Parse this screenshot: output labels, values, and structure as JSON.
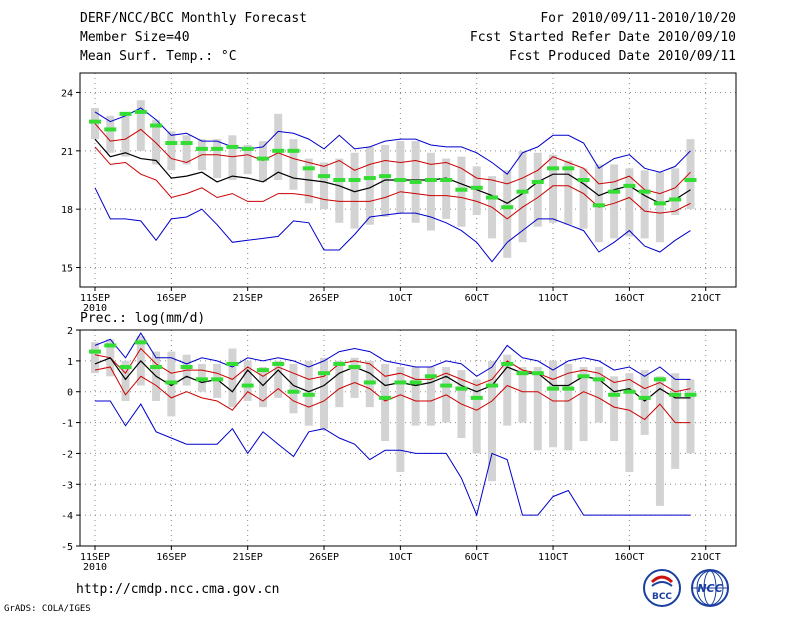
{
  "header": {
    "title": "DERF/NCC/BCC Monthly Forecast",
    "member_size": "Member Size=40",
    "variable": "Mean Surf. Temp.: °C",
    "period": "For 2010/09/11-2010/10/20",
    "started": "Fcst Started Refer Date 2010/09/10",
    "produced": "Fcst Produced Date 2010/09/11"
  },
  "footer": {
    "url": "http://cmdp.ncc.cma.gov.cn",
    "grads": "GrADS: COLA/IGES",
    "logo_bcc": "BCC",
    "logo_ncc": "NCC"
  },
  "colors": {
    "ensmax": "#0000cc",
    "ensmin": "#0000cc",
    "spread": "#cc0000",
    "mean": "#000000",
    "box": "#d3d3d3",
    "clim": "#33dd33"
  },
  "chart_data": [
    {
      "type": "line",
      "title": "Mean Surf. Temp.: °C",
      "xlabel": "",
      "ylabel": "",
      "xlim": [
        1,
        40
      ],
      "ylim": [
        14,
        25
      ],
      "yticks": [
        15,
        18,
        21,
        24
      ],
      "xticks": [
        {
          "day": 1,
          "label": "11SEP"
        },
        {
          "day": 6,
          "label": "16SEP"
        },
        {
          "day": 11,
          "label": "21SEP"
        },
        {
          "day": 16,
          "label": "26SEP"
        },
        {
          "day": 21,
          "label": "1OCT"
        },
        {
          "day": 26,
          "label": "6OCT"
        },
        {
          "day": 31,
          "label": "11OCT"
        },
        {
          "day": 36,
          "label": "16OCT"
        },
        {
          "day": 41,
          "label": "21OCT"
        }
      ],
      "year_label": "2010",
      "grid": true,
      "x": [
        1,
        2,
        3,
        4,
        5,
        6,
        7,
        8,
        9,
        10,
        11,
        12,
        13,
        14,
        15,
        16,
        17,
        18,
        19,
        20,
        21,
        22,
        23,
        24,
        25,
        26,
        27,
        28,
        29,
        30,
        31,
        32,
        33,
        34,
        35,
        36,
        37,
        38,
        39,
        40
      ],
      "series": [
        {
          "name": "max",
          "values": [
            23.0,
            22.5,
            22.8,
            23.2,
            22.6,
            21.8,
            21.9,
            21.5,
            21.5,
            21.2,
            21.1,
            21.2,
            22.0,
            21.9,
            21.6,
            21.1,
            21.8,
            21.1,
            21.2,
            21.5,
            21.6,
            21.6,
            21.3,
            21.2,
            21.2,
            20.9,
            20.4,
            19.8,
            20.9,
            21.2,
            21.8,
            21.8,
            21.4,
            20.1,
            20.6,
            20.8,
            20.1,
            19.9,
            20.2,
            21.0
          ]
        },
        {
          "name": "upper",
          "values": [
            22.4,
            21.5,
            21.6,
            22.1,
            21.4,
            20.6,
            20.4,
            20.8,
            20.8,
            20.7,
            20.8,
            20.5,
            20.9,
            20.6,
            20.4,
            20.2,
            20.5,
            20.0,
            20.3,
            20.5,
            20.4,
            20.5,
            20.3,
            20.4,
            20.1,
            19.6,
            19.5,
            19.3,
            19.6,
            20.0,
            20.7,
            20.4,
            20.1,
            19.3,
            19.4,
            19.7,
            19.0,
            18.8,
            19.1,
            19.9
          ]
        },
        {
          "name": "mean",
          "values": [
            21.6,
            20.7,
            20.9,
            20.6,
            20.5,
            19.6,
            19.7,
            19.9,
            19.4,
            19.7,
            19.6,
            19.4,
            19.9,
            19.6,
            19.5,
            19.4,
            19.2,
            18.9,
            19.1,
            19.5,
            19.5,
            19.5,
            19.5,
            19.6,
            19.3,
            19.0,
            18.7,
            18.3,
            18.8,
            19.4,
            19.8,
            19.8,
            19.3,
            18.7,
            19.0,
            19.2,
            18.7,
            18.3,
            18.5,
            19.0
          ]
        },
        {
          "name": "lower",
          "values": [
            21.2,
            20.3,
            20.4,
            19.8,
            19.5,
            18.6,
            18.8,
            19.1,
            18.6,
            18.8,
            18.4,
            18.4,
            18.8,
            18.8,
            18.7,
            18.5,
            18.4,
            18.4,
            18.4,
            18.6,
            18.9,
            18.8,
            18.7,
            18.7,
            18.6,
            18.4,
            18.1,
            17.5,
            18.1,
            18.6,
            19.2,
            19.2,
            18.8,
            18.1,
            18.3,
            18.6,
            17.9,
            17.8,
            17.9,
            18.3
          ]
        },
        {
          "name": "min",
          "values": [
            19.1,
            17.5,
            17.5,
            17.4,
            16.4,
            17.5,
            17.6,
            18.0,
            17.2,
            16.3,
            16.4,
            16.5,
            16.6,
            17.4,
            17.3,
            15.9,
            15.9,
            16.7,
            17.6,
            17.7,
            17.8,
            17.8,
            17.6,
            17.3,
            16.9,
            16.3,
            15.3,
            16.3,
            16.9,
            17.5,
            17.5,
            17.2,
            16.9,
            15.8,
            16.3,
            16.9,
            16.1,
            15.8,
            16.4,
            16.9
          ]
        },
        {
          "name": "box_top",
          "values": [
            23.2,
            22.8,
            22.8,
            23.6,
            22.6,
            22.0,
            21.8,
            21.6,
            21.6,
            21.8,
            21.3,
            21.5,
            22.9,
            21.6,
            20.6,
            20.4,
            20.6,
            20.9,
            21.2,
            21.3,
            21.5,
            21.5,
            20.9,
            20.6,
            20.7,
            20.2,
            19.7,
            20.0,
            21.0,
            20.9,
            20.8,
            20.5,
            20.1,
            20.3,
            20.3,
            20.1,
            20.0,
            19.9,
            20.1,
            21.6
          ]
        },
        {
          "name": "box_bottom",
          "values": [
            21.6,
            20.9,
            20.7,
            21.0,
            20.3,
            20.0,
            20.3,
            20.0,
            19.6,
            19.5,
            19.8,
            19.4,
            19.5,
            19.0,
            18.3,
            18.0,
            17.3,
            17.0,
            17.2,
            17.6,
            17.8,
            17.3,
            16.9,
            17.5,
            17.1,
            17.7,
            16.5,
            15.5,
            16.3,
            17.1,
            17.3,
            17.2,
            17.0,
            16.3,
            16.5,
            16.6,
            16.5,
            16.3,
            17.7,
            18.0
          ]
        },
        {
          "name": "clim",
          "values": [
            22.5,
            22.1,
            22.9,
            23.0,
            22.3,
            21.4,
            21.4,
            21.1,
            21.1,
            21.2,
            21.1,
            20.6,
            21.0,
            21.0,
            20.1,
            19.7,
            19.5,
            19.5,
            19.6,
            19.7,
            19.5,
            19.4,
            19.5,
            19.5,
            19.0,
            19.1,
            18.6,
            18.1,
            18.9,
            19.4,
            20.1,
            20.1,
            19.5,
            18.2,
            18.9,
            19.2,
            18.9,
            18.3,
            18.5,
            19.5
          ]
        }
      ]
    },
    {
      "type": "line",
      "title": "Prec.: log(mm/d)",
      "xlabel": "",
      "ylabel": "",
      "xlim": [
        1,
        40
      ],
      "ylim": [
        -5,
        2
      ],
      "yticks": [
        -5,
        -4,
        -3,
        -2,
        -1,
        0,
        1,
        2
      ],
      "xticks": [
        {
          "day": 1,
          "label": "11SEP"
        },
        {
          "day": 6,
          "label": "16SEP"
        },
        {
          "day": 11,
          "label": "21SEP"
        },
        {
          "day": 16,
          "label": "26SEP"
        },
        {
          "day": 21,
          "label": "1OCT"
        },
        {
          "day": 26,
          "label": "6OCT"
        },
        {
          "day": 31,
          "label": "11OCT"
        },
        {
          "day": 36,
          "label": "16OCT"
        },
        {
          "day": 41,
          "label": "21OCT"
        }
      ],
      "year_label": "2010",
      "grid": true,
      "x": [
        1,
        2,
        3,
        4,
        5,
        6,
        7,
        8,
        9,
        10,
        11,
        12,
        13,
        14,
        15,
        16,
        17,
        18,
        19,
        20,
        21,
        22,
        23,
        24,
        25,
        26,
        27,
        28,
        29,
        30,
        31,
        32,
        33,
        34,
        35,
        36,
        37,
        38,
        39,
        40
      ],
      "series": [
        {
          "name": "max",
          "values": [
            1.5,
            1.7,
            1.1,
            1.9,
            1.1,
            1.1,
            0.9,
            1.1,
            1.0,
            0.8,
            1.1,
            1.0,
            1.1,
            1.0,
            0.8,
            1.0,
            1.3,
            1.4,
            1.3,
            1.0,
            0.9,
            0.8,
            0.8,
            1.0,
            0.9,
            0.5,
            0.8,
            1.5,
            1.1,
            1.0,
            0.7,
            1.0,
            1.1,
            1.0,
            0.7,
            0.8,
            0.5,
            0.8,
            0.4,
            0.4
          ]
        },
        {
          "name": "upper",
          "values": [
            1.2,
            1.1,
            0.6,
            1.4,
            0.9,
            0.6,
            0.7,
            0.7,
            0.6,
            0.4,
            0.8,
            0.5,
            0.8,
            0.6,
            0.4,
            0.5,
            0.9,
            1.0,
            0.9,
            0.5,
            0.6,
            0.4,
            0.4,
            0.6,
            0.4,
            0.2,
            0.4,
            1.0,
            0.7,
            0.6,
            0.4,
            0.6,
            0.7,
            0.6,
            0.3,
            0.4,
            0.1,
            0.3,
            0.0,
            0.1
          ]
        },
        {
          "name": "mean",
          "values": [
            0.9,
            1.1,
            0.4,
            1.0,
            0.5,
            0.2,
            0.5,
            0.3,
            0.4,
            0.0,
            0.7,
            0.2,
            0.7,
            0.2,
            0.0,
            0.2,
            0.6,
            0.8,
            0.6,
            0.2,
            0.3,
            0.2,
            0.3,
            0.5,
            0.2,
            0.0,
            0.2,
            0.8,
            0.6,
            0.6,
            0.2,
            0.2,
            0.5,
            0.4,
            0.0,
            0.1,
            -0.3,
            0.1,
            -0.2,
            -0.2
          ]
        },
        {
          "name": "lower",
          "values": [
            0.7,
            0.8,
            -0.1,
            0.5,
            0.2,
            -0.2,
            0.0,
            -0.2,
            -0.3,
            -0.6,
            0.0,
            -0.3,
            0.1,
            -0.3,
            -0.5,
            -0.3,
            0.1,
            0.3,
            0.1,
            -0.3,
            -0.1,
            -0.3,
            -0.3,
            -0.1,
            -0.4,
            -0.6,
            -0.3,
            0.2,
            0.0,
            0.0,
            -0.3,
            -0.3,
            0.0,
            -0.2,
            -0.5,
            -0.6,
            -0.9,
            -0.4,
            -1.0,
            -1.0
          ]
        },
        {
          "name": "min",
          "values": [
            -0.3,
            -0.3,
            -1.1,
            -0.4,
            -1.3,
            -1.5,
            -1.7,
            -1.7,
            -1.7,
            -1.2,
            -2.0,
            -1.3,
            -1.7,
            -2.1,
            -1.3,
            -1.2,
            -1.5,
            -1.7,
            -2.2,
            -1.9,
            -1.9,
            -2.0,
            -2.0,
            -2.0,
            -2.8,
            -4.0,
            -2.0,
            -2.2,
            -4.0,
            -4.0,
            -3.4,
            -3.2,
            -4.0,
            -4.0,
            -4.0,
            -4.0,
            -4.0,
            -4.0,
            -4.0,
            -4.0
          ]
        },
        {
          "name": "box_top",
          "values": [
            1.6,
            1.7,
            1.0,
            1.8,
            1.3,
            1.3,
            1.2,
            0.9,
            0.9,
            1.4,
            1.0,
            0.8,
            1.0,
            0.9,
            1.0,
            1.1,
            1.0,
            1.1,
            1.0,
            0.9,
            0.8,
            0.8,
            0.8,
            0.8,
            0.7,
            0.4,
            1.0,
            1.2,
            0.8,
            0.8,
            1.0,
            0.9,
            0.8,
            0.8,
            0.5,
            0.6,
            0.7,
            0.5,
            0.6,
            0.4
          ]
        },
        {
          "name": "box_bottom",
          "values": [
            0.6,
            0.5,
            -0.3,
            0.2,
            -0.3,
            -0.8,
            0.2,
            0.0,
            -0.2,
            -0.5,
            -0.3,
            -0.5,
            -0.2,
            -0.7,
            -1.1,
            -1.2,
            -0.5,
            -0.2,
            -0.5,
            -1.6,
            -2.6,
            -1.1,
            -1.1,
            -1.0,
            -1.5,
            -2.0,
            -2.9,
            -1.1,
            -1.0,
            -1.9,
            -1.8,
            -1.9,
            -1.6,
            -1.0,
            -1.6,
            -2.6,
            -1.4,
            -3.7,
            -2.5,
            -2.0
          ]
        },
        {
          "name": "clim",
          "values": [
            1.3,
            1.5,
            0.8,
            1.6,
            0.8,
            0.3,
            0.8,
            0.4,
            0.4,
            0.9,
            0.2,
            0.7,
            0.9,
            0.0,
            -0.1,
            0.6,
            0.9,
            0.8,
            0.3,
            -0.2,
            0.3,
            0.3,
            0.5,
            0.2,
            0.1,
            -0.2,
            0.2,
            0.9,
            0.6,
            0.6,
            0.1,
            0.1,
            0.5,
            0.4,
            -0.1,
            0.0,
            -0.2,
            0.4,
            -0.1,
            -0.1
          ]
        }
      ]
    }
  ]
}
